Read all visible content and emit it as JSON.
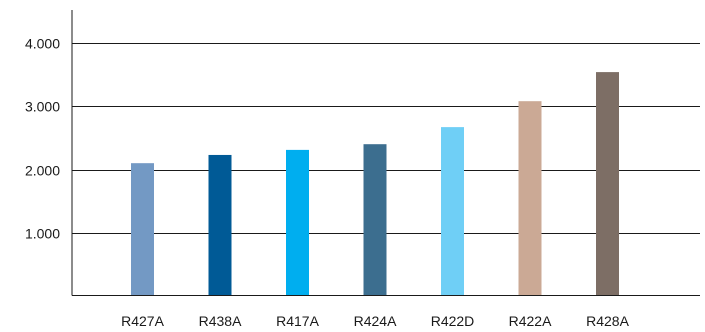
{
  "chart_data": {
    "type": "bar",
    "title": "",
    "xlabel": "",
    "ylabel": "",
    "categories": [
      "R427A",
      "R438A",
      "R417A",
      "R424A",
      "R422D",
      "R422A",
      "R428A"
    ],
    "values": [
      2100,
      2230,
      2310,
      2400,
      2670,
      3080,
      3540
    ],
    "colors": [
      "#7399c4",
      "#005a96",
      "#00aeef",
      "#3c6e8f",
      "#6fcff6",
      "#cba995",
      "#7d6e65"
    ],
    "ylim": [
      0,
      4000
    ],
    "yticks": [
      1000,
      2000,
      3000,
      4000
    ],
    "ytick_labels": [
      "1.000",
      "2.000",
      "3.000",
      "4.000"
    ],
    "grid": true,
    "legend": "none"
  }
}
